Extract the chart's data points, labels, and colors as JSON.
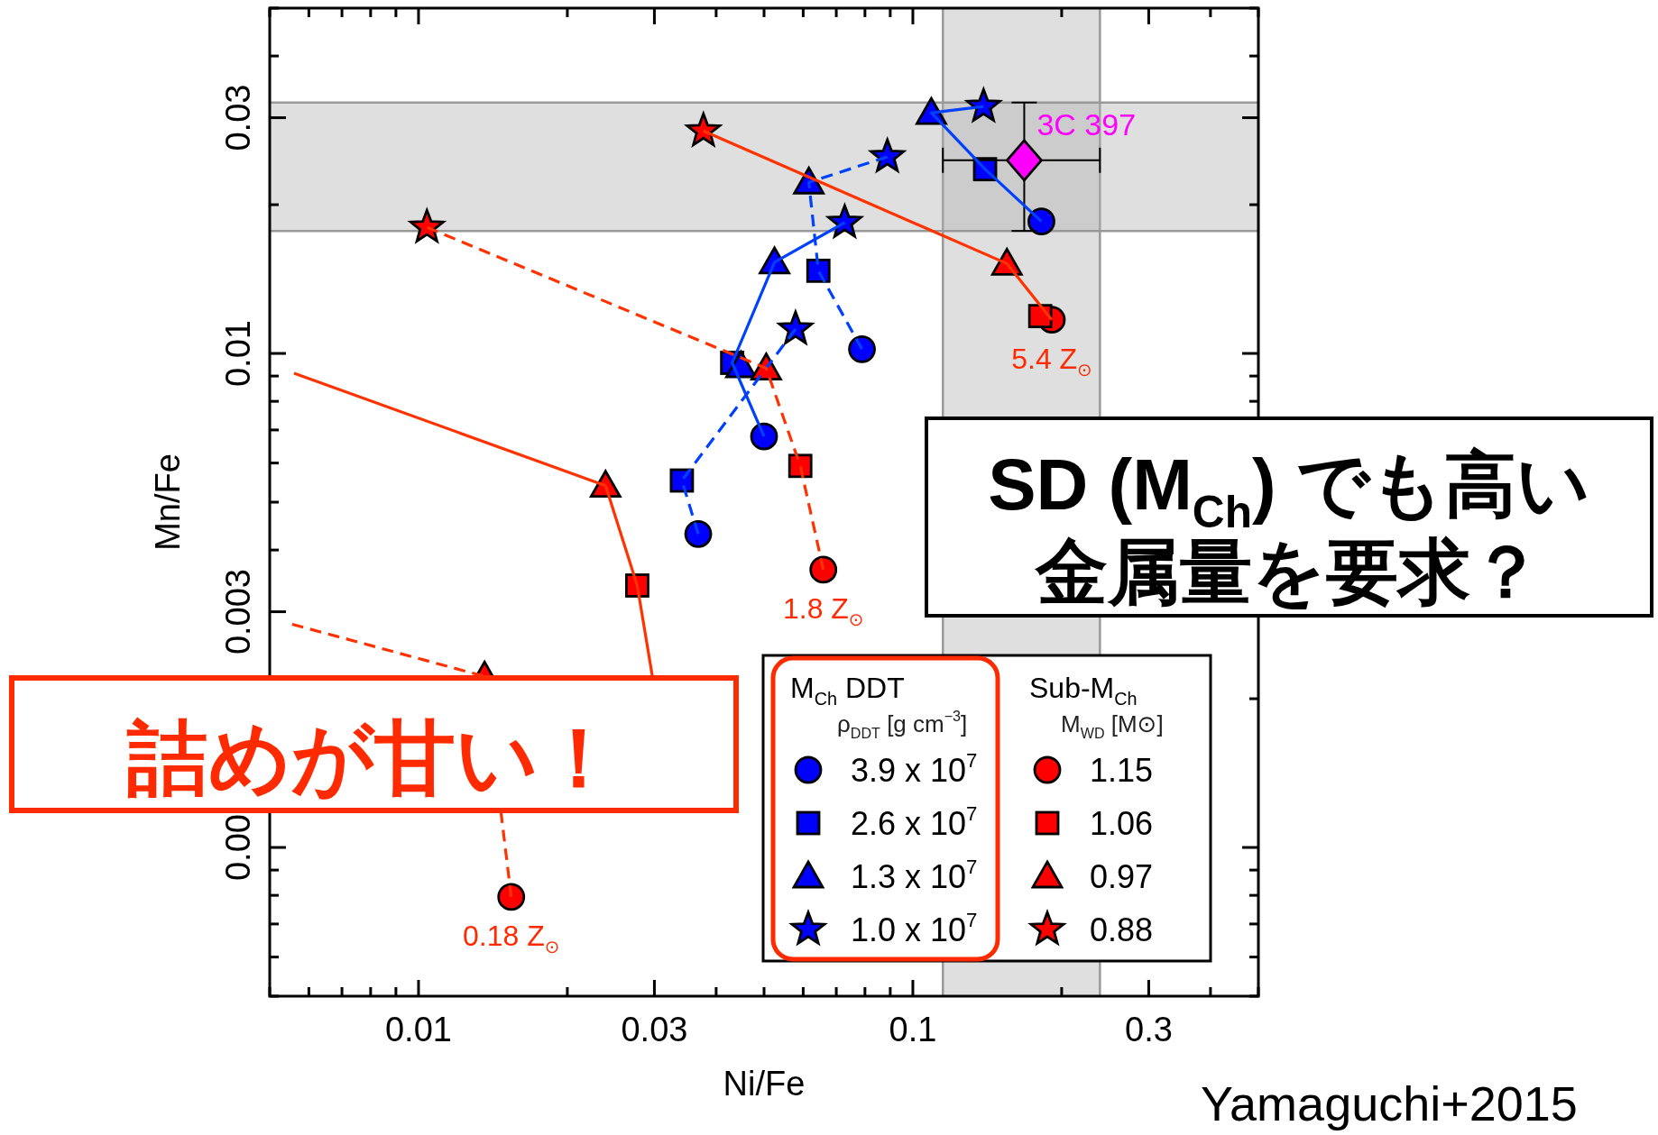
{
  "chart_data": {
    "type": "scatter",
    "xlabel": "Ni/Fe",
    "ylabel": "Mn/Fe",
    "log": "xy",
    "xlim": [
      0.005,
      0.5
    ],
    "xticks": [
      {
        "value": 0.005,
        "label": null
      },
      {
        "value": 0.006,
        "label": null
      },
      {
        "value": 0.007,
        "label": null
      },
      {
        "value": 0.008,
        "label": null
      },
      {
        "value": 0.009,
        "label": null
      },
      0.01,
      {
        "value": 0.02,
        "label": null
      },
      0.03,
      {
        "value": 0.04,
        "label": null
      },
      {
        "value": 0.05,
        "label": null
      },
      {
        "value": 0.06,
        "label": null
      },
      {
        "value": 0.07,
        "label": null
      },
      {
        "value": 0.08,
        "label": null
      },
      {
        "value": 0.09,
        "label": null
      },
      0.1,
      {
        "value": 0.2,
        "label": null
      },
      0.3,
      {
        "value": 0.4,
        "label": null
      },
      {
        "value": 0.5,
        "label": null
      }
    ],
    "ylim": [
      0.0005,
      0.05
    ],
    "yticks": [
      {
        "value": 0.0005,
        "label": null
      },
      {
        "value": 0.0006,
        "label": null
      },
      {
        "value": 0.0007,
        "label": null
      },
      {
        "value": 0.0008,
        "label": null
      },
      {
        "value": 0.0009,
        "label": null
      },
      {
        "value": 0.001,
        "label": "0.00"
      },
      {
        "value": 0.002,
        "label": null
      },
      0.003,
      {
        "value": 0.004,
        "label": null
      },
      {
        "value": 0.005,
        "label": null
      },
      {
        "value": 0.006,
        "label": null
      },
      {
        "value": 0.007,
        "label": null
      },
      {
        "value": 0.008,
        "label": null
      },
      {
        "value": 0.009,
        "label": null
      },
      0.01,
      {
        "value": 0.02,
        "label": null
      },
      0.03,
      {
        "value": 0.04,
        "label": null
      },
      {
        "value": 0.05,
        "label": null
      }
    ],
    "bands": [
      {
        "axis": "x",
        "from": 0.115,
        "to": 0.239,
        "color": "#b0b0b0"
      },
      {
        "axis": "y",
        "from": 0.0177,
        "to": 0.0322,
        "color": "#b0b0b0"
      }
    ],
    "legend": "bottom right",
    "legend_title": [
      [
        "M$_{Ch}$ DDT",
        "ρ$_{DDT}$ [g cm$^{−3}$]"
      ],
      [
        "Sub-M$_{Ch}$",
        "M$_{WD}$ [M⊙]"
      ]
    ],
    "series": [
      {
        "type": "line",
        "color": "#0040ff",
        "line_style": "solid",
        "marker": "none",
        "x": [
          0.182,
          0.14,
          0.109,
          0.139
        ],
        "values": [
          0.0185,
          0.0236,
          0.0307,
          0.0316
        ]
      },
      {
        "type": "line",
        "color": "#0040ff",
        "line_style": "dashed",
        "marker": "none",
        "x": [
          0.0789,
          0.0644,
          0.0616,
          0.0888
        ],
        "values": [
          0.0102,
          0.0147,
          0.0222,
          0.025
        ]
      },
      {
        "type": "line",
        "color": "#0040ff",
        "line_style": "solid",
        "marker": "none",
        "x": [
          0.05,
          0.0431,
          0.0525,
          0.0728
        ],
        "values": [
          0.00679,
          0.00957,
          0.0153,
          0.0184
        ]
      },
      {
        "type": "line",
        "color": "#0040ff",
        "line_style": "dashed",
        "marker": "none",
        "x": [
          0.0368,
          0.0341,
          0.0579
        ],
        "values": [
          0.00431,
          0.00553,
          0.0112
        ]
      },
      {
        "type": "line",
        "color": "#ff3300",
        "line_style": "solid",
        "marker": "none",
        "x": [
          0.191,
          0.155,
          0.0377
        ],
        "values": [
          0.0117,
          0.0152,
          0.0282
        ]
      },
      {
        "type": "line",
        "color": "#ff3300",
        "line_style": "dashed",
        "marker": "none",
        "x": [
          0.0659,
          0.0592,
          0.0505,
          0.0104
        ],
        "values": [
          0.00365,
          0.00592,
          0.00933,
          0.018
        ]
      },
      {
        "type": "line",
        "color": "#ff3300",
        "line_style": "solid",
        "marker": "none",
        "x": [
          0.0056,
          0.0239,
          0.0277,
          0.0297
        ],
        "values": [
          0.00912,
          0.0054,
          0.00339,
          0.00223
        ]
      },
      {
        "type": "line",
        "color": "#ff3300",
        "line_style": "dashed",
        "marker": "none",
        "x": [
          0.00555,
          0.0136,
          0.0154
        ],
        "values": [
          0.00283,
          0.00222,
          0.000794
        ]
      },
      {
        "type": "scatter",
        "name": "3.9 x 10$^{7}$",
        "color": "#0000ff",
        "marker": "circle",
        "x": [
          0.182,
          0.0789,
          0.05,
          0.0368
        ],
        "values": [
          0.0185,
          0.0102,
          0.00679,
          0.00431
        ]
      },
      {
        "type": "scatter",
        "name": "2.6 x 10$^{7}$",
        "color": "#0000ff",
        "marker": "square",
        "x": [
          0.14,
          0.0644,
          0.0431,
          0.0341
        ],
        "values": [
          0.0236,
          0.0147,
          0.00957,
          0.00553
        ]
      },
      {
        "type": "scatter",
        "name": "1.3 x 10$^{7}$",
        "color": "#0000ff",
        "marker": "triangle",
        "x": [
          0.109,
          0.0616,
          0.0525,
          0.0449
        ],
        "values": [
          0.0307,
          0.0222,
          0.0153,
          0.00943
        ]
      },
      {
        "type": "scatter",
        "name": "1.0 x 10$^{7}$",
        "color": "#0000ff",
        "marker": "star",
        "x": [
          0.139,
          0.0888,
          0.0728,
          0.0579
        ],
        "values": [
          0.0316,
          0.025,
          0.0184,
          0.0112
        ]
      },
      {
        "type": "scatter",
        "name": "1.15",
        "color": "#ff0000",
        "marker": "circle",
        "x": [
          0.191,
          0.0659,
          0.0154
        ],
        "values": [
          0.0117,
          0.00365,
          0.000794
        ]
      },
      {
        "type": "scatter",
        "name": "1.06",
        "color": "#ff0000",
        "marker": "square",
        "x": [
          0.181,
          0.0592,
          0.0277
        ],
        "values": [
          0.0119,
          0.00592,
          0.00339
        ]
      },
      {
        "type": "scatter",
        "name": "0.97",
        "color": "#ff0000",
        "marker": "triangle",
        "x": [
          0.155,
          0.0505,
          0.0239,
          0.0136
        ],
        "values": [
          0.0152,
          0.00933,
          0.0054,
          0.00222
        ]
      },
      {
        "type": "scatter",
        "name": "0.88",
        "color": "#ff0000",
        "marker": "star",
        "x": [
          0.0377,
          0.0104
        ],
        "values": [
          0.0282,
          0.018
        ]
      },
      {
        "type": "scatter",
        "name": "3C 397",
        "color": "#ff00ff",
        "marker": "diamond",
        "x": [
          0.168
        ],
        "values": [
          0.0246
        ],
        "errors": [
          [
            0.0177,
            0.0322
          ]
        ],
        "xerrors": [
          [
            0.115,
            0.239
          ]
        ]
      }
    ],
    "annotations": [
      {
        "text": "5.4 Z$_{⊙}$",
        "x": 0.191,
        "y": 0.0117
      },
      {
        "text": "1.8 Z$_{⊙}$",
        "x": 0.0659,
        "y": 0.00365
      },
      {
        "text": "0.18 Z$_{⊙}$",
        "x": 0.0154,
        "y": 0.000794
      },
      "SD (M$_{Ch}$) でも高い金属量を要求？",
      "詰めが甘い！",
      "Yamaguchi+2015"
    ]
  }
}
